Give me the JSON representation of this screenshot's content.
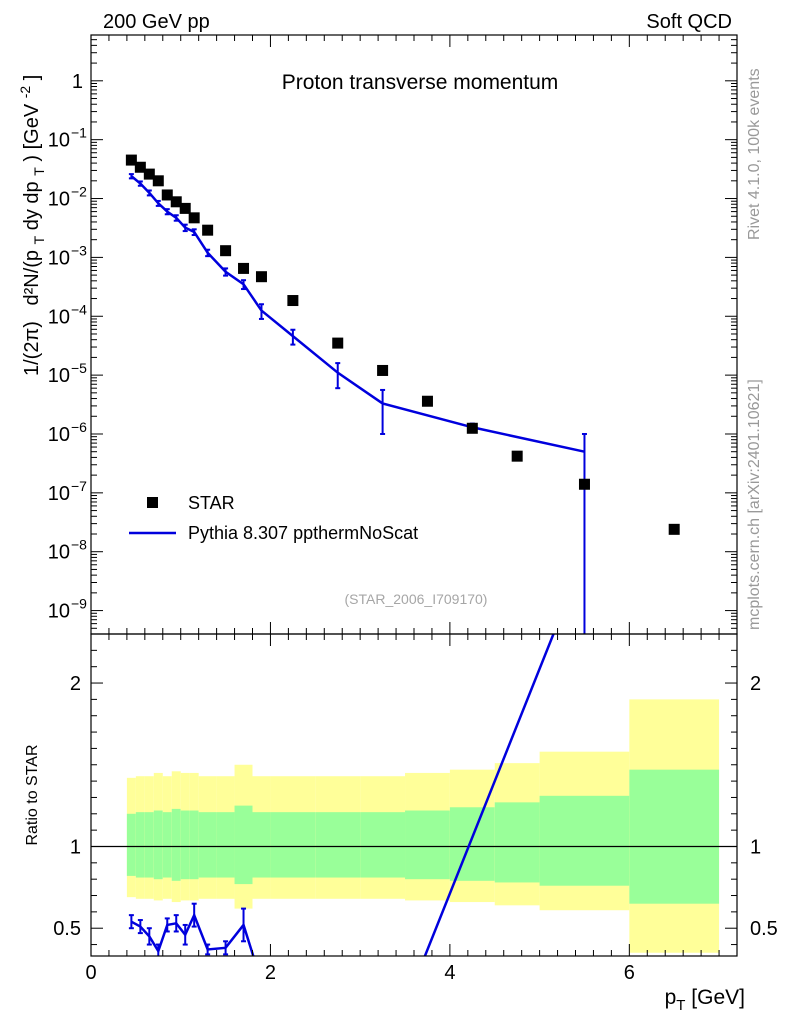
{
  "header": {
    "left": "200 GeV pp",
    "right": "Soft QCD"
  },
  "side_labels": {
    "rivet": "Rivet 4.1.0,  100k events",
    "mcplots": "mcplots.cern.ch [arXiv:2401.10621]"
  },
  "colors": {
    "mc": "#0000dd",
    "band_inner": "#99ff99",
    "band_outer": "#ffff99",
    "data": "#000000"
  },
  "chart_data": [
    {
      "type": "scatter",
      "title": "Proton transverse momentum",
      "ylabel_parts": [
        "1/(2π)",
        "d²N/(p",
        "T",
        " dy dp",
        "T",
        ") [GeV",
        "-2",
        "]"
      ],
      "ylabel": "1/(2π)  d²N/(p_T dy dp_T) [GeV^-2]",
      "yscale": "log",
      "xlim": [
        0,
        7.2
      ],
      "ylim": [
        4e-10,
        6
      ],
      "y_tick_labels": [
        "10^-9",
        "10^-8",
        "10^-7",
        "10^-6",
        "10^-5",
        "10^-4",
        "10^-3",
        "10^-2",
        "10^-1",
        "1"
      ],
      "legend": {
        "data_label": "STAR",
        "mc_label": "Pythia 8.307 ppthermNoScat",
        "placement": "bottom-left"
      },
      "annotation": "(STAR_2006_I709170)",
      "series": [
        {
          "name": "STAR",
          "style": "markers",
          "x": [
            0.45,
            0.55,
            0.65,
            0.75,
            0.85,
            0.95,
            1.05,
            1.15,
            1.3,
            1.5,
            1.7,
            1.9,
            2.25,
            2.75,
            3.25,
            3.75,
            4.25,
            4.75,
            5.5,
            6.5
          ],
          "y": [
            0.045,
            0.034,
            0.026,
            0.02,
            0.0115,
            0.0088,
            0.0068,
            0.0047,
            0.0029,
            0.0013,
            0.00065,
            0.00047,
            0.000185,
            3.5e-05,
            1.2e-05,
            3.6e-06,
            1.25e-06,
            4.2e-07,
            1.4e-07,
            2.4e-08
          ]
        },
        {
          "name": "Pythia 8.307 ppthermNoScat",
          "style": "line",
          "x": [
            0.45,
            0.55,
            0.65,
            0.75,
            0.85,
            0.95,
            1.05,
            1.15,
            1.3,
            1.5,
            1.7,
            1.9,
            2.25,
            2.75,
            3.25,
            4.25,
            5.5
          ],
          "y": [
            0.024,
            0.018,
            0.0125,
            0.0083,
            0.006,
            0.0047,
            0.0032,
            0.0027,
            0.0012,
            0.00057,
            0.00035,
            0.000125,
            4.6e-05,
            1.1e-05,
            3.3e-06,
            1.3e-06,
            5e-07
          ],
          "yerr_low": [
            0.002,
            0.0015,
            0.0012,
            0.0008,
            0.0006,
            0.0005,
            0.0004,
            0.0003,
            0.00015,
            8e-05,
            6e-05,
            3.5e-05,
            1.3e-05,
            5e-06,
            2.3e-06,
            2e-07,
            4.999e-07
          ],
          "yerr_high": [
            0.002,
            0.0015,
            0.0012,
            0.0008,
            0.0006,
            0.0005,
            0.0004,
            0.0003,
            0.00015,
            8e-05,
            6e-05,
            3.5e-05,
            1.3e-05,
            5e-06,
            2.3e-06,
            2e-07,
            5e-07
          ]
        }
      ]
    },
    {
      "type": "line",
      "ylabel": "Ratio to STAR",
      "xlabel": "p_T [GeV]",
      "xlabel_parts": [
        "p",
        "T",
        " [GeV]"
      ],
      "xlim": [
        0,
        7.2
      ],
      "ylim": [
        0.33,
        2.3
      ],
      "x_tick_labels": [
        "0",
        "2",
        "4",
        "6"
      ],
      "y_tick_labels": [
        "0.5",
        "1",
        "2"
      ],
      "bands": {
        "edges": [
          0.4,
          0.5,
          0.6,
          0.7,
          0.8,
          0.9,
          1.0,
          1.1,
          1.2,
          1.4,
          1.6,
          1.8,
          2.0,
          2.5,
          3.0,
          3.5,
          4.0,
          4.5,
          5.0,
          6.0,
          7.0
        ],
        "inner_low": [
          0.82,
          0.81,
          0.81,
          0.8,
          0.81,
          0.79,
          0.8,
          0.8,
          0.81,
          0.81,
          0.77,
          0.81,
          0.81,
          0.81,
          0.81,
          0.8,
          0.79,
          0.78,
          0.76,
          0.65
        ],
        "inner_high": [
          1.2,
          1.21,
          1.21,
          1.22,
          1.21,
          1.23,
          1.22,
          1.22,
          1.21,
          1.21,
          1.25,
          1.21,
          1.21,
          1.21,
          1.21,
          1.22,
          1.24,
          1.27,
          1.31,
          1.47
        ],
        "outer_low": [
          0.69,
          0.68,
          0.68,
          0.67,
          0.68,
          0.66,
          0.67,
          0.67,
          0.68,
          0.68,
          0.62,
          0.68,
          0.68,
          0.68,
          0.68,
          0.67,
          0.66,
          0.64,
          0.61,
          0.35
        ],
        "outer_high": [
          1.42,
          1.43,
          1.43,
          1.45,
          1.43,
          1.46,
          1.45,
          1.45,
          1.43,
          1.43,
          1.5,
          1.43,
          1.43,
          1.43,
          1.43,
          1.45,
          1.47,
          1.51,
          1.58,
          1.9
        ]
      },
      "series": [
        {
          "name": "Pythia 8.307 ppthermNoScat",
          "x": [
            0.45,
            0.55,
            0.65,
            0.75,
            0.85,
            0.95,
            1.05,
            1.15,
            1.3,
            1.5,
            1.7,
            1.9,
            3.7,
            5.3
          ],
          "y": [
            0.54,
            0.51,
            0.45,
            0.36,
            0.52,
            0.53,
            0.46,
            0.58,
            0.37,
            0.38,
            0.52,
            0.17,
            0.3,
            2.5
          ],
          "yerr": [
            0.04,
            0.04,
            0.05,
            0.04,
            0.04,
            0.05,
            0.06,
            0.07,
            0.03,
            0.04,
            0.1,
            0,
            0,
            0
          ]
        }
      ]
    }
  ]
}
